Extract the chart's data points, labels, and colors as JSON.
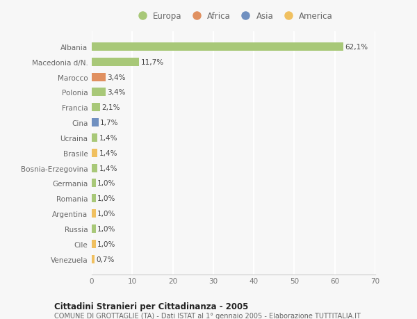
{
  "categories": [
    "Venezuela",
    "Cile",
    "Russia",
    "Argentina",
    "Romania",
    "Germania",
    "Bosnia-Erzegovina",
    "Brasile",
    "Ucraina",
    "Cina",
    "Francia",
    "Polonia",
    "Marocco",
    "Macedonia d/N.",
    "Albania"
  ],
  "values": [
    0.7,
    1.0,
    1.0,
    1.0,
    1.0,
    1.0,
    1.4,
    1.4,
    1.4,
    1.7,
    2.1,
    3.4,
    3.4,
    11.7,
    62.1
  ],
  "labels": [
    "0,7%",
    "1,0%",
    "1,0%",
    "1,0%",
    "1,0%",
    "1,0%",
    "1,4%",
    "1,4%",
    "1,4%",
    "1,7%",
    "2,1%",
    "3,4%",
    "3,4%",
    "11,7%",
    "62,1%"
  ],
  "colors": [
    "#f0c060",
    "#f0c060",
    "#a8c878",
    "#f0c060",
    "#a8c878",
    "#a8c878",
    "#a8c878",
    "#f0c060",
    "#a8c878",
    "#7090c0",
    "#a8c878",
    "#a8c878",
    "#e09060",
    "#a8c878",
    "#a8c878"
  ],
  "legend_labels": [
    "Europa",
    "Africa",
    "Asia",
    "America"
  ],
  "legend_colors": [
    "#a8c878",
    "#e09060",
    "#7090c0",
    "#f0c060"
  ],
  "title": "Cittadini Stranieri per Cittadinanza - 2005",
  "subtitle": "COMUNE DI GROTTAGLIE (TA) - Dati ISTAT al 1° gennaio 2005 - Elaborazione TUTTITALIA.IT",
  "xlim": [
    0,
    70
  ],
  "xticks": [
    0,
    10,
    20,
    30,
    40,
    50,
    60,
    70
  ],
  "background_color": "#f7f7f7",
  "grid_color": "#ffffff"
}
